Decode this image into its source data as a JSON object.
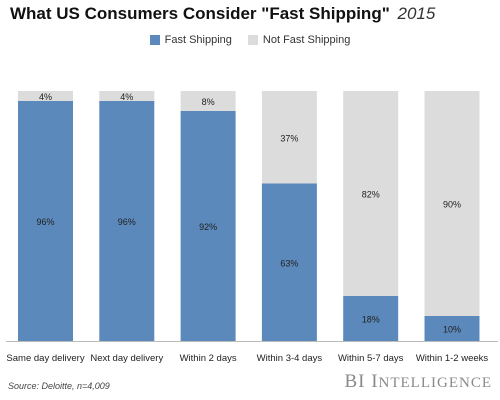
{
  "header": {
    "title": "What US Consumers Consider \"Fast Shipping\"",
    "year": "2015"
  },
  "legend": {
    "fast_label": "Fast Shipping",
    "not_fast_label": "Not Fast Shipping"
  },
  "colors": {
    "fast": "#5b89bb",
    "not_fast": "#dcdcdc"
  },
  "footer": {
    "source": "Source: Deloitte, n=4,009",
    "brand_bi": "BI",
    "brand_first": "I",
    "brand_rest": "NTELLIGENCE"
  },
  "chart_data": {
    "type": "bar",
    "stacked": true,
    "categories": [
      "Same day delivery",
      "Next day delivery",
      "Within 2 days",
      "Within 3-4 days",
      "Within 5-7 days",
      "Within 1-2 weeks"
    ],
    "series": [
      {
        "name": "Fast Shipping",
        "values": [
          96,
          96,
          92,
          63,
          18,
          10
        ]
      },
      {
        "name": "Not Fast Shipping",
        "values": [
          4,
          4,
          8,
          37,
          82,
          90
        ]
      }
    ],
    "value_labels": {
      "fast": [
        "96%",
        "96%",
        "92%",
        "63%",
        "18%",
        "10%"
      ],
      "not_fast": [
        "4%",
        "4%",
        "8%",
        "37%",
        "82%",
        "90%"
      ]
    },
    "ylim": [
      0,
      100
    ],
    "legend_position": "top-center",
    "grid": false
  }
}
